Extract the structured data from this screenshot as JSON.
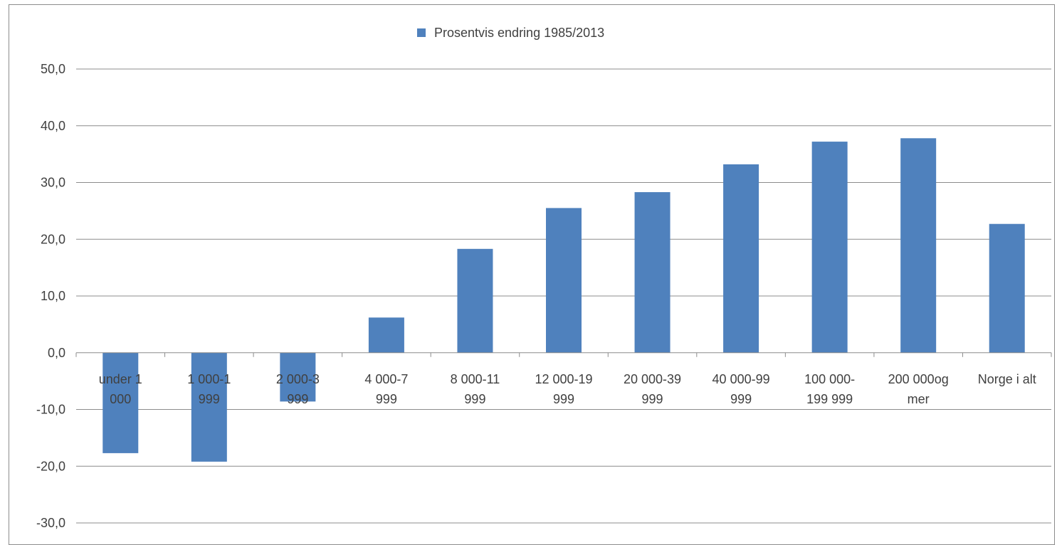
{
  "legend": {
    "label": "Prosentvis endring 1985/2013",
    "color": "#4f81bd"
  },
  "chart_data": {
    "type": "bar",
    "title": "",
    "xlabel": "",
    "ylabel": "",
    "categories": [
      [
        "under 1",
        "000"
      ],
      [
        "1 000-1",
        "999"
      ],
      [
        "2 000-3",
        "999"
      ],
      [
        "4 000-7",
        "999"
      ],
      [
        "8 000-11",
        "999"
      ],
      [
        "12 000-19",
        "999"
      ],
      [
        "20 000-39",
        "999"
      ],
      [
        "40 000-99",
        "999"
      ],
      [
        "100 000-",
        "199 999"
      ],
      [
        "200 000og",
        "mer"
      ],
      [
        "Norge i alt"
      ]
    ],
    "series": [
      {
        "name": "Prosentvis endring 1985/2013",
        "color": "#4f81bd",
        "values": [
          -17.7,
          -19.2,
          -8.6,
          6.2,
          18.3,
          25.5,
          28.3,
          33.2,
          37.2,
          37.8,
          22.7
        ]
      }
    ],
    "yticks": [
      "50,0",
      "40,0",
      "30,0",
      "20,0",
      "10,0",
      "0,0",
      "-10,0",
      "-20,0",
      "-30,0"
    ],
    "ylim": [
      -30,
      50
    ],
    "grid": true,
    "legend_position": "top"
  }
}
